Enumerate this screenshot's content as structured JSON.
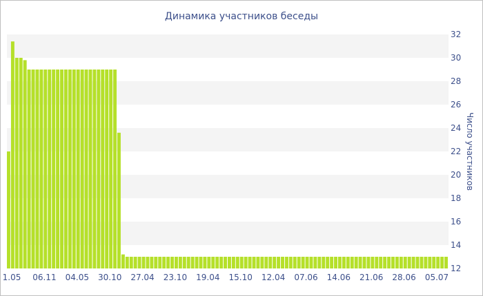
{
  "chart_data": {
    "type": "bar",
    "title": "Динамика участников беседы",
    "xlabel": "",
    "ylabel": "Число участников",
    "ylim": [
      12,
      32
    ],
    "y_ticks": [
      12,
      14,
      16,
      18,
      20,
      22,
      24,
      26,
      28,
      30,
      32
    ],
    "x_tick_labels": [
      "1.05",
      "06.11",
      "04.05",
      "30.10",
      "27.04",
      "23.10",
      "19.04",
      "15.10",
      "12.04",
      "07.06",
      "14.06",
      "21.06",
      "28.06",
      "05.07"
    ],
    "grid": true,
    "bar_color": "#b5e02a",
    "band_color": "#f4f4f4",
    "values": [
      22,
      31.4,
      30,
      30,
      29.8,
      29,
      29,
      29,
      29,
      29,
      29,
      29,
      29,
      29,
      29,
      29,
      29,
      29,
      29,
      29,
      29,
      29,
      29,
      29,
      29,
      29,
      29,
      23.6,
      13.2,
      13,
      13,
      13,
      13,
      13,
      13,
      13,
      13,
      13,
      13,
      13,
      13,
      13,
      13,
      13,
      13,
      13,
      13,
      13,
      13,
      13,
      13,
      13,
      13,
      13,
      13,
      13,
      13,
      13,
      13,
      13,
      13,
      13,
      13,
      13,
      13,
      13,
      13,
      13,
      13,
      13,
      13,
      13,
      13,
      13,
      13,
      13,
      13,
      13,
      13,
      13,
      13,
      13,
      13,
      13,
      13,
      13,
      13,
      13,
      13,
      13,
      13,
      13,
      13,
      13,
      13,
      13,
      13,
      13,
      13,
      13,
      13,
      13,
      13,
      13,
      13,
      13,
      13,
      13
    ]
  }
}
